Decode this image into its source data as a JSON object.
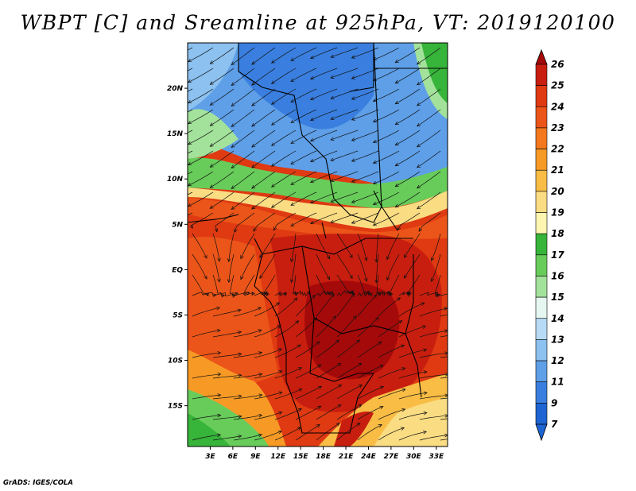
{
  "title": "WBPT [C] and Sreamline at 925hPa, VT: 2019120100",
  "footer": "GrADS: IGES/COLA",
  "map": {
    "lat_labels": [
      "20N",
      "15N",
      "10N",
      "5N",
      "EQ",
      "5S",
      "10S",
      "15S"
    ],
    "lon_labels": [
      "3E",
      "6E",
      "9E",
      "12E",
      "15E",
      "18E",
      "21E",
      "24E",
      "27E",
      "30E",
      "33E"
    ],
    "lat_range": [
      -19.5,
      25
    ],
    "lon_range": [
      0,
      34.5
    ]
  },
  "colorbar": {
    "levels": [
      "26",
      "25",
      "24",
      "23",
      "22",
      "21",
      "20",
      "19",
      "18",
      "17",
      "16",
      "15",
      "14",
      "13",
      "12",
      "11",
      "9",
      "7"
    ],
    "top_color": "#a50a0a",
    "bottom_color": "#1e64d2",
    "colors": [
      "#a50a0a",
      "#c81e0f",
      "#df3a12",
      "#ec5519",
      "#f4781e",
      "#f79a25",
      "#f9bd45",
      "#fadc82",
      "#fdf5b0",
      "#37b43a",
      "#68cc5a",
      "#a3e29b",
      "#e6f7f2",
      "#b7dbf6",
      "#8cc1f0",
      "#5e9fe8",
      "#3a7fdf",
      "#1e64d2"
    ]
  }
}
